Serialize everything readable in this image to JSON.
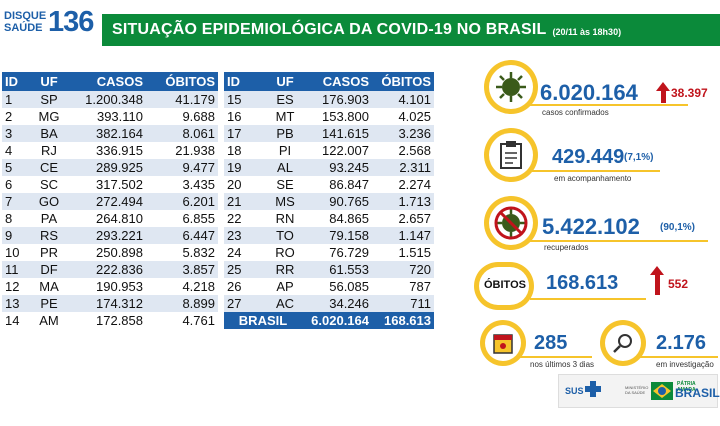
{
  "header": {
    "logo_line1": "DISQUE",
    "logo_line2": "SAÚDE",
    "logo_number": "136",
    "title": "SITUAÇÃO EPIDEMIOLÓGICA DA COVID-19 NO BRASIL",
    "date": "(20/11 às 18h30)"
  },
  "table_headers": {
    "id": "ID",
    "uf": "UF",
    "casos": "CASOS",
    "obitos": "ÓBITOS"
  },
  "table_left": [
    {
      "id": "1",
      "uf": "SP",
      "casos": "1.200.348",
      "obitos": "41.179"
    },
    {
      "id": "2",
      "uf": "MG",
      "casos": "393.110",
      "obitos": "9.688"
    },
    {
      "id": "3",
      "uf": "BA",
      "casos": "382.164",
      "obitos": "8.061"
    },
    {
      "id": "4",
      "uf": "RJ",
      "casos": "336.915",
      "obitos": "21.938"
    },
    {
      "id": "5",
      "uf": "CE",
      "casos": "289.925",
      "obitos": "9.477"
    },
    {
      "id": "6",
      "uf": "SC",
      "casos": "317.502",
      "obitos": "3.435"
    },
    {
      "id": "7",
      "uf": "GO",
      "casos": "272.494",
      "obitos": "6.201"
    },
    {
      "id": "8",
      "uf": "PA",
      "casos": "264.810",
      "obitos": "6.855"
    },
    {
      "id": "9",
      "uf": "RS",
      "casos": "293.221",
      "obitos": "6.447"
    },
    {
      "id": "10",
      "uf": "PR",
      "casos": "250.898",
      "obitos": "5.832"
    },
    {
      "id": "11",
      "uf": "DF",
      "casos": "222.836",
      "obitos": "3.857"
    },
    {
      "id": "12",
      "uf": "MA",
      "casos": "190.953",
      "obitos": "4.218"
    },
    {
      "id": "13",
      "uf": "PE",
      "casos": "174.312",
      "obitos": "8.899"
    },
    {
      "id": "14",
      "uf": "AM",
      "casos": "172.858",
      "obitos": "4.761"
    }
  ],
  "table_right": [
    {
      "id": "15",
      "uf": "ES",
      "casos": "176.903",
      "obitos": "4.101"
    },
    {
      "id": "16",
      "uf": "MT",
      "casos": "153.800",
      "obitos": "4.025"
    },
    {
      "id": "17",
      "uf": "PB",
      "casos": "141.615",
      "obitos": "3.236"
    },
    {
      "id": "18",
      "uf": "PI",
      "casos": "122.007",
      "obitos": "2.568"
    },
    {
      "id": "19",
      "uf": "AL",
      "casos": "93.245",
      "obitos": "2.311"
    },
    {
      "id": "20",
      "uf": "SE",
      "casos": "86.847",
      "obitos": "2.274"
    },
    {
      "id": "21",
      "uf": "MS",
      "casos": "90.765",
      "obitos": "1.713"
    },
    {
      "id": "22",
      "uf": "RN",
      "casos": "84.865",
      "obitos": "2.657"
    },
    {
      "id": "23",
      "uf": "TO",
      "casos": "79.158",
      "obitos": "1.147"
    },
    {
      "id": "24",
      "uf": "RO",
      "casos": "76.729",
      "obitos": "1.515"
    },
    {
      "id": "25",
      "uf": "RR",
      "casos": "61.553",
      "obitos": "720"
    },
    {
      "id": "26",
      "uf": "AP",
      "casos": "56.085",
      "obitos": "787"
    },
    {
      "id": "27",
      "uf": "AC",
      "casos": "34.246",
      "obitos": "711"
    }
  ],
  "table_total": {
    "label": "BRASIL",
    "casos": "6.020.164",
    "obitos": "168.613"
  },
  "stats": {
    "confirmados": {
      "value": "6.020.164",
      "delta": "38.397",
      "label": "casos confirmados",
      "icon": "virus-icon"
    },
    "acompanhamento": {
      "value": "429.449",
      "pct": "(7,1%)",
      "label": "em acompanhamento",
      "icon": "clipboard-icon"
    },
    "recuperados": {
      "value": "5.422.102",
      "pct": "(90,1%)",
      "label": "recuperados",
      "icon": "virus-crossed-icon"
    },
    "obitos": {
      "title": "ÓBITOS",
      "value": "168.613",
      "delta": "552"
    },
    "ultimos": {
      "value": "285",
      "label": "nos últimos 3 dias",
      "icon": "calendar-icon"
    },
    "investigacao": {
      "value": "2.176",
      "label": "em investigação",
      "icon": "magnifier-icon"
    }
  },
  "footer": {
    "sus": "SUS",
    "ministerio": "MINISTÉRIO DA SAÚDE",
    "patria": "PÁTRIA AMADA",
    "brasil": "BRASIL"
  },
  "colors": {
    "blue": "#1d5fa8",
    "green": "#0b8a3a",
    "yellow": "#f6c42b",
    "red": "#c0141c"
  }
}
